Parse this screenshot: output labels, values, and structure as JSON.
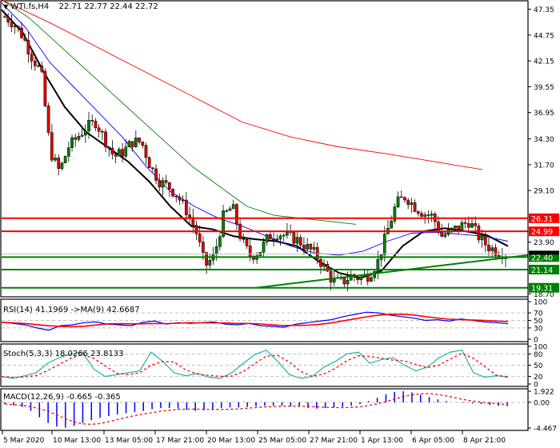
{
  "header": {
    "symbol_menu_icon": "triangle-down-icon",
    "title": "WTI.fs,H4",
    "ohlc": "22.71 22.77 22.44 22.72"
  },
  "colors": {
    "bull": "#008000",
    "bear": "#e00000",
    "ma_fast": "#000000",
    "ma_blue": "#0000ff",
    "ma_green": "#008000",
    "ma_red": "#ff0000",
    "resistance": "#ff0000",
    "support": "#008000",
    "rsi_line": "#0000ff",
    "rsi_ma": "#ff0000",
    "stoch_main": "#20b2aa",
    "stoch_signal": "#ff0000",
    "macd_hist": "#0000ff",
    "macd_signal": "#ff0000",
    "grid_dash": "#c0c0c0"
  },
  "price_axis": {
    "ticks": [
      "47.35",
      "44.75",
      "42.15",
      "39.55",
      "36.95",
      "34.30",
      "31.70",
      "29.10",
      "23.90",
      "18.70"
    ],
    "current_price": "22.72"
  },
  "levels": [
    {
      "type": "resistance",
      "value": "26.31"
    },
    {
      "type": "resistance",
      "value": "24.99"
    },
    {
      "type": "support",
      "value": "22.40"
    },
    {
      "type": "support",
      "value": "21.14"
    },
    {
      "type": "support",
      "value": "19.31"
    }
  ],
  "rsi": {
    "label": "RSI(14) 41.1969  ->MA(9) 42.6687",
    "ticks": [
      "100",
      "70",
      "50",
      "30",
      "0"
    ]
  },
  "stoch": {
    "label": "Stoch(5,3,3) 18.0266 23.8133",
    "ticks": [
      "100",
      "80",
      "50",
      "20",
      "0"
    ]
  },
  "macd": {
    "label": "MACD(12,26,9) -0.665 -0.365",
    "ticks": [
      "1.922",
      "0.00",
      "-4.467"
    ]
  },
  "time_axis": {
    "labels": [
      "5 Mar 2020",
      "10 Mar 13:00",
      "13 Mar 05:00",
      "17 Mar 21:00",
      "20 Mar 13:00",
      "25 Mar 05:00",
      "27 Mar 21:00",
      "1 Apr 13:00",
      "6 Apr 05:00",
      "8 Apr 21:00"
    ]
  },
  "chart_data": [
    {
      "type": "candlestick",
      "title": "WTI.fs,H4",
      "subtitle": "22.71 22.77 22.44 22.72",
      "ylim": [
        18.4,
        48.2
      ],
      "y_ticks": [
        47.35,
        44.75,
        42.15,
        39.55,
        36.95,
        34.3,
        31.7,
        29.1,
        23.9,
        18.7
      ],
      "x_tick_labels": [
        "5 Mar 2020",
        "10 Mar 13:00",
        "13 Mar 05:00",
        "17 Mar 21:00",
        "20 Mar 13:00",
        "25 Mar 05:00",
        "27 Mar 21:00",
        "1 Apr 13:00",
        "6 Apr 05:00",
        "8 Apr 21:00"
      ],
      "close_path": [
        46.6,
        45.9,
        44.6,
        42.5,
        41.0,
        33.0,
        31.0,
        33.5,
        34.5,
        35.5,
        36.0,
        34.2,
        32.5,
        33.0,
        34.0,
        34.0,
        31.5,
        30.0,
        29.5,
        28.5,
        27.0,
        25.0,
        21.5,
        22.5,
        26.5,
        27.5,
        24.0,
        22.5,
        23.0,
        24.5,
        24.8,
        24.5,
        24.2,
        23.5,
        22.8,
        21.5,
        20.0,
        19.8,
        20.5,
        20.3,
        20.6,
        22.0,
        25.0,
        27.8,
        28.5,
        27.5,
        26.8,
        26.5,
        24.5,
        25.0,
        25.5,
        26.0,
        24.5,
        23.5,
        23.0,
        22.72
      ],
      "moving_averages": [
        {
          "name": "MA fast (black)",
          "color": "#000000",
          "values": [
            47.3,
            45.0,
            41.0,
            37.5,
            35.0,
            33.5,
            32.0,
            30.0,
            27.5,
            25.5,
            25.2,
            24.5,
            24.2,
            24.0,
            23.5,
            22.0,
            20.8,
            20.3,
            21.0,
            23.5,
            25.0,
            25.3,
            25.0,
            24.6,
            23.5
          ]
        },
        {
          "name": "MA blue",
          "color": "#0000ff",
          "values": [
            48.0,
            45.5,
            42.0,
            39.5,
            37.0,
            34.5,
            31.5,
            29.0,
            27.5,
            26.3,
            25.5,
            24.5,
            23.5,
            22.8,
            22.6,
            23.0,
            24.0,
            24.8,
            24.9,
            24.7,
            24.5,
            24.0
          ]
        },
        {
          "name": "MA green",
          "color": "#008000",
          "values": [
            48.3,
            46.5,
            44.0,
            41.5,
            39.0,
            36.5,
            34.0,
            31.5,
            29.5,
            27.5,
            26.6,
            26.3,
            26.0,
            25.7
          ]
        },
        {
          "name": "MA red",
          "color": "#ff0000",
          "values": [
            48.3,
            46.0,
            43.5,
            41.0,
            38.5,
            36.0,
            34.5,
            33.5,
            32.8,
            32.0,
            31.2
          ]
        }
      ],
      "horizontal_levels": [
        26.31,
        24.99,
        22.4,
        21.14,
        19.31
      ],
      "trendline": {
        "from": [
          27.5,
          19.31
        ],
        "to": [
          40.0,
          22.6
        ],
        "color": "#008000"
      }
    },
    {
      "type": "line",
      "title": "RSI(14) 41.1969 ->MA(9) 42.6687",
      "ylim": [
        0,
        100
      ],
      "y_ticks": [
        100,
        70,
        50,
        30,
        0
      ],
      "series": [
        {
          "name": "RSI(14)",
          "color": "#0000ff",
          "last": 41.1969
        },
        {
          "name": "MA(9)",
          "color": "#ff0000",
          "last": 42.6687
        }
      ]
    },
    {
      "type": "line",
      "title": "Stoch(5,3,3) 18.0266 23.8133",
      "ylim": [
        0,
        100
      ],
      "y_ticks": [
        100,
        80,
        50,
        20,
        0
      ],
      "series": [
        {
          "name": "%K",
          "color": "#20b2aa",
          "last": 18.0266
        },
        {
          "name": "%D",
          "color": "#ff0000",
          "last": 23.8133
        }
      ]
    },
    {
      "type": "bar",
      "title": "MACD(12,26,9) -0.665 -0.365",
      "ylim": [
        -4.467,
        1.922
      ],
      "y_ticks": [
        1.922,
        0.0,
        -4.467
      ],
      "series": [
        {
          "name": "MACD",
          "color": "#0000ff",
          "last": -0.665
        },
        {
          "name": "Signal",
          "color": "#ff0000",
          "last": -0.365
        }
      ]
    }
  ]
}
